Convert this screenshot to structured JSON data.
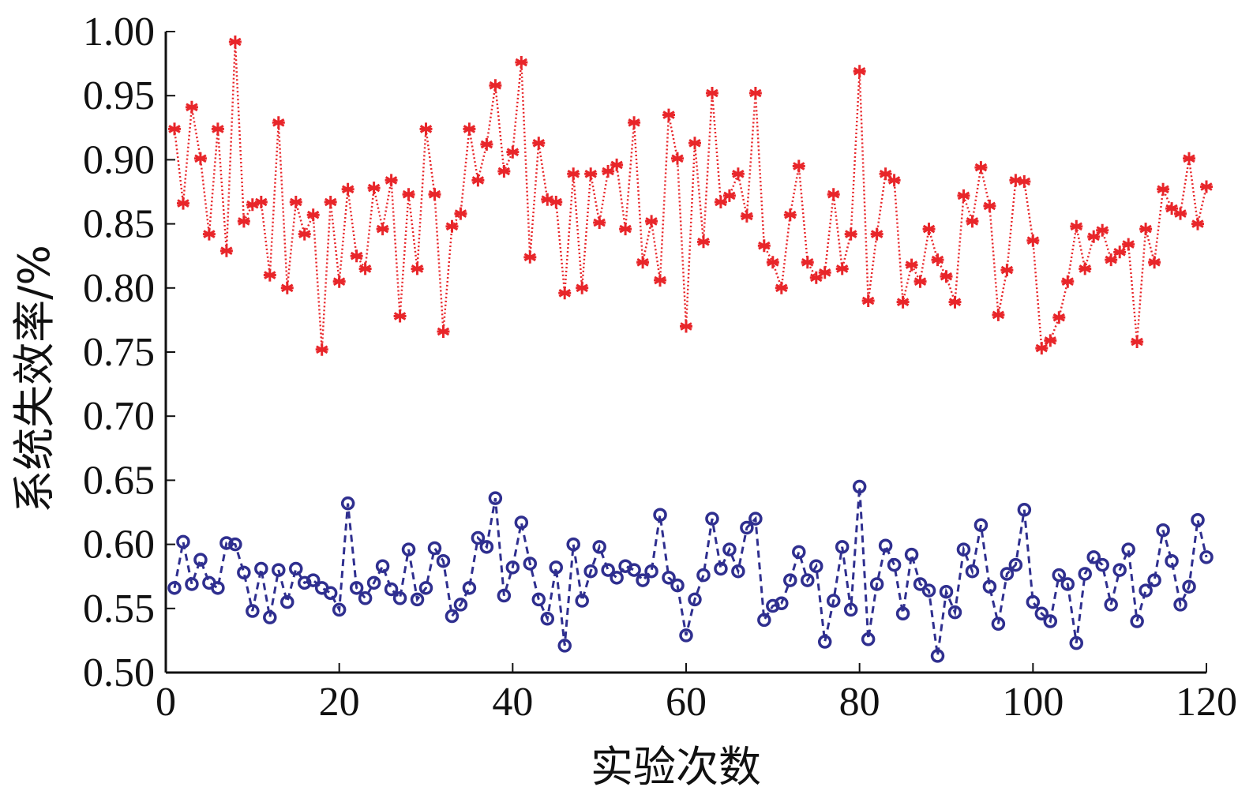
{
  "chart_data": {
    "type": "line",
    "title": "",
    "xlabel": "实验次数",
    "ylabel": "系统失效率/%",
    "xlim": [
      0,
      120
    ],
    "ylim": [
      0.5,
      1.0
    ],
    "x_ticks": [
      "0",
      "20",
      "40",
      "60",
      "80",
      "100",
      "120"
    ],
    "y_ticks": [
      "0.50",
      "0.55",
      "0.60",
      "0.65",
      "0.70",
      "0.75",
      "0.80",
      "0.85",
      "0.90",
      "0.95",
      "1.00"
    ],
    "grid": false,
    "legend": "none",
    "x": [
      1,
      2,
      3,
      4,
      5,
      6,
      7,
      8,
      9,
      10,
      11,
      12,
      13,
      14,
      15,
      16,
      17,
      18,
      19,
      20,
      21,
      22,
      23,
      24,
      25,
      26,
      27,
      28,
      29,
      30,
      31,
      32,
      33,
      34,
      35,
      36,
      37,
      38,
      39,
      40,
      41,
      42,
      43,
      44,
      45,
      46,
      47,
      48,
      49,
      50,
      51,
      52,
      53,
      54,
      55,
      56,
      57,
      58,
      59,
      60,
      61,
      62,
      63,
      64,
      65,
      66,
      67,
      68,
      69,
      70,
      71,
      72,
      73,
      74,
      75,
      76,
      77,
      78,
      79,
      80,
      81,
      82,
      83,
      84,
      85,
      86,
      87,
      88,
      89,
      90,
      91,
      92,
      93,
      94,
      95,
      96,
      97,
      98,
      99,
      100,
      101,
      102,
      103,
      104,
      105,
      106,
      107,
      108,
      109,
      110,
      111,
      112,
      113,
      114,
      115,
      116,
      117,
      118,
      119,
      120
    ],
    "series": [
      {
        "color": "#e8262a",
        "marker": "asterisk",
        "line": "dotted",
        "values": [
          0.924,
          0.866,
          0.941,
          0.901,
          0.842,
          0.924,
          0.829,
          0.992,
          0.852,
          0.865,
          0.867,
          0.81,
          0.929,
          0.8,
          0.867,
          0.842,
          0.857,
          0.752,
          0.867,
          0.805,
          0.877,
          0.825,
          0.815,
          0.878,
          0.846,
          0.884,
          0.778,
          0.873,
          0.815,
          0.924,
          0.873,
          0.766,
          0.848,
          0.858,
          0.924,
          0.884,
          0.912,
          0.958,
          0.891,
          0.906,
          0.976,
          0.824,
          0.913,
          0.869,
          0.867,
          0.796,
          0.889,
          0.8,
          0.889,
          0.851,
          0.891,
          0.896,
          0.846,
          0.929,
          0.82,
          0.852,
          0.806,
          0.935,
          0.901,
          0.77,
          0.913,
          0.836,
          0.952,
          0.867,
          0.872,
          0.889,
          0.856,
          0.952,
          0.833,
          0.82,
          0.8,
          0.857,
          0.895,
          0.82,
          0.808,
          0.812,
          0.873,
          0.815,
          0.842,
          0.969,
          0.79,
          0.842,
          0.889,
          0.884,
          0.789,
          0.818,
          0.805,
          0.846,
          0.822,
          0.809,
          0.789,
          0.872,
          0.852,
          0.894,
          0.864,
          0.779,
          0.814,
          0.884,
          0.883,
          0.837,
          0.753,
          0.759,
          0.777,
          0.805,
          0.848,
          0.815,
          0.84,
          0.845,
          0.822,
          0.828,
          0.834,
          0.758,
          0.846,
          0.82,
          0.877,
          0.862,
          0.858,
          0.901,
          0.85,
          0.879
        ]
      },
      {
        "color": "#2f2f8f",
        "marker": "circle",
        "line": "dashed",
        "values": [
          0.566,
          0.602,
          0.569,
          0.588,
          0.57,
          0.566,
          0.601,
          0.6,
          0.578,
          0.548,
          0.581,
          0.543,
          0.58,
          0.555,
          0.581,
          0.57,
          0.572,
          0.566,
          0.562,
          0.549,
          0.632,
          0.566,
          0.558,
          0.57,
          0.583,
          0.565,
          0.558,
          0.596,
          0.557,
          0.566,
          0.597,
          0.587,
          0.544,
          0.553,
          0.566,
          0.605,
          0.598,
          0.636,
          0.56,
          0.582,
          0.617,
          0.585,
          0.557,
          0.542,
          0.582,
          0.521,
          0.6,
          0.556,
          0.579,
          0.598,
          0.58,
          0.574,
          0.583,
          0.58,
          0.572,
          0.579,
          0.623,
          0.574,
          0.568,
          0.529,
          0.557,
          0.576,
          0.62,
          0.581,
          0.596,
          0.579,
          0.613,
          0.62,
          0.541,
          0.552,
          0.554,
          0.572,
          0.594,
          0.572,
          0.583,
          0.524,
          0.556,
          0.598,
          0.549,
          0.645,
          0.526,
          0.569,
          0.599,
          0.584,
          0.546,
          0.592,
          0.569,
          0.564,
          0.513,
          0.563,
          0.547,
          0.596,
          0.579,
          0.615,
          0.567,
          0.538,
          0.577,
          0.584,
          0.627,
          0.555,
          0.546,
          0.54,
          0.576,
          0.569,
          0.523,
          0.577,
          0.59,
          0.584,
          0.553,
          0.58,
          0.596,
          0.54,
          0.564,
          0.572,
          0.611,
          0.587,
          0.553,
          0.567,
          0.619,
          0.59
        ]
      }
    ]
  }
}
